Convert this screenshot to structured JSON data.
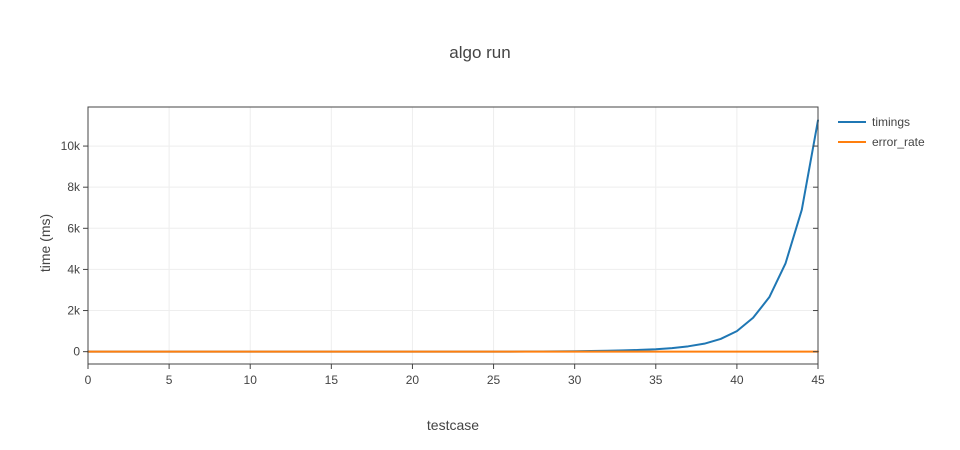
{
  "chart_data": {
    "type": "line",
    "title": "algo run",
    "xlabel": "testcase",
    "ylabel": "time (ms)",
    "xlim": [
      0,
      45
    ],
    "ylim": [
      -600,
      11900
    ],
    "x_ticks": [
      0,
      5,
      10,
      15,
      20,
      25,
      30,
      35,
      40,
      45
    ],
    "x_tick_labels": [
      "0",
      "5",
      "10",
      "15",
      "20",
      "25",
      "30",
      "35",
      "40",
      "45"
    ],
    "y_ticks": [
      0,
      2000,
      4000,
      6000,
      8000,
      10000
    ],
    "y_tick_labels": [
      "0",
      "2k",
      "4k",
      "6k",
      "8k",
      "10k"
    ],
    "grid": true,
    "legend_position": "top-right",
    "x": [
      0,
      1,
      2,
      3,
      4,
      5,
      6,
      7,
      8,
      9,
      10,
      11,
      12,
      13,
      14,
      15,
      16,
      17,
      18,
      19,
      20,
      21,
      22,
      23,
      24,
      25,
      26,
      27,
      28,
      29,
      30,
      31,
      32,
      33,
      34,
      35,
      36,
      37,
      38,
      39,
      40,
      41,
      42,
      43,
      44,
      45
    ],
    "series": [
      {
        "name": "timings",
        "color": "#1f77b4",
        "values": [
          0,
          0,
          0,
          0,
          0,
          0,
          0,
          0,
          0,
          0,
          0,
          0,
          0,
          0,
          0,
          0,
          0,
          0,
          0,
          0,
          0,
          0,
          1,
          1,
          2,
          3,
          4,
          6,
          9,
          14,
          20,
          30,
          42,
          60,
          85,
          120,
          175,
          260,
          390,
          620,
          1000,
          1650,
          2650,
          4300,
          6900,
          11250
        ]
      },
      {
        "name": "error_rate",
        "color": "#ff7f0e",
        "values": [
          0,
          0,
          0,
          0,
          0,
          0,
          0,
          0,
          0,
          0,
          0,
          0,
          0,
          0,
          0,
          0,
          0,
          0,
          0,
          0,
          0,
          0,
          0,
          0,
          0,
          0,
          0,
          0,
          0,
          0,
          0,
          0,
          0,
          0,
          0,
          0,
          0,
          0,
          0,
          0,
          0,
          0,
          0,
          0,
          0,
          0
        ]
      }
    ]
  }
}
